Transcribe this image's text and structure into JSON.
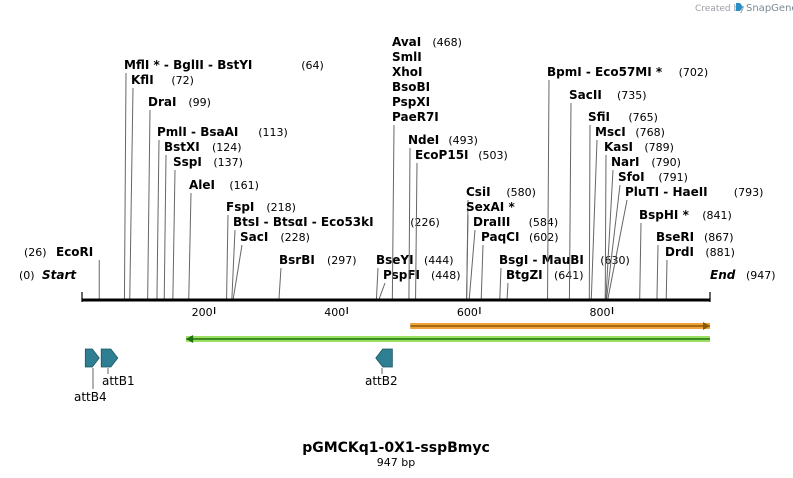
{
  "credit": {
    "prefix": "Created by",
    "brand": "SnapGene",
    "brand_color": "#2b8fc7"
  },
  "map": {
    "length": 947,
    "start_label": "Start",
    "end_label": "End",
    "start_pos": "(0)",
    "end_pos": "(947)",
    "ticks": [
      200,
      400,
      600,
      800
    ]
  },
  "sites": [
    {
      "id": "ecori",
      "label": "EcoRI",
      "pos_text": "(26)",
      "pos": 26,
      "pos_left": true
    },
    {
      "id": "mfli",
      "label": "MflI * - BglII - BstYI",
      "pos_text": "(64)",
      "pos": 64
    },
    {
      "id": "kfli",
      "label": "KflI",
      "pos_text": "(72)",
      "pos": 72
    },
    {
      "id": "drai",
      "label": "DraI",
      "pos_text": "(99)",
      "pos": 99
    },
    {
      "id": "pmli",
      "label": "PmlI - BsaAI",
      "pos_text": "(113)",
      "pos": 113
    },
    {
      "id": "bstxi",
      "label": "BstXI",
      "pos_text": "(124)",
      "pos": 124
    },
    {
      "id": "sspi",
      "label": "SspI",
      "pos_text": "(137)",
      "pos": 137
    },
    {
      "id": "alei",
      "label": "AleI",
      "pos_text": "(161)",
      "pos": 161
    },
    {
      "id": "fspi",
      "label": "FspI",
      "pos_text": "(218)",
      "pos": 218
    },
    {
      "id": "btsi",
      "label": "BtsI - BtsαI - Eco53kI",
      "pos_text": "(226)",
      "pos": 226
    },
    {
      "id": "saci",
      "label": "SacI",
      "pos_text": "(228)",
      "pos": 228
    },
    {
      "id": "bsrbi",
      "label": "BsrBI",
      "pos_text": "(297)",
      "pos": 297
    },
    {
      "id": "bseyi",
      "label": "BseYI",
      "pos_text": "(444)",
      "pos": 444
    },
    {
      "id": "pspfi",
      "label": "PspFI",
      "pos_text": "(448)",
      "pos": 448
    },
    {
      "id": "avai",
      "label": "AvaI\nSmlI\nXhoI\nBsoBI\nPspXI\nPaeR7I",
      "pos_text": "(468)",
      "pos": 468
    },
    {
      "id": "ndei",
      "label": "NdeI",
      "pos_text": "(493)",
      "pos": 493
    },
    {
      "id": "ecop15i",
      "label": "EcoP15I",
      "pos_text": "(503)",
      "pos": 503
    },
    {
      "id": "csii",
      "label": "CsiI",
      "pos_text": "(580)",
      "pos": 580
    },
    {
      "id": "sexai",
      "label": "SexAI *",
      "pos_text": "",
      "pos": 580
    },
    {
      "id": "draiii",
      "label": "DraIII",
      "pos_text": "(584)",
      "pos": 584
    },
    {
      "id": "paqci",
      "label": "PaqCI",
      "pos_text": "(602)",
      "pos": 602
    },
    {
      "id": "bsgi",
      "label": "BsgI - MauBI",
      "pos_text": "(630)",
      "pos": 630
    },
    {
      "id": "btgzi",
      "label": "BtgZI",
      "pos_text": "(641)",
      "pos": 641
    },
    {
      "id": "bpmi",
      "label": "BpmI - Eco57MI *",
      "pos_text": "(702)",
      "pos": 702
    },
    {
      "id": "sacii",
      "label": "SacII",
      "pos_text": "(735)",
      "pos": 735
    },
    {
      "id": "sfii",
      "label": "SfiI",
      "pos_text": "(765)",
      "pos": 765
    },
    {
      "id": "msci",
      "label": "MscI",
      "pos_text": "(768)",
      "pos": 768
    },
    {
      "id": "kasi",
      "label": "KasI",
      "pos_text": "(789)",
      "pos": 789
    },
    {
      "id": "nari",
      "label": "NarI",
      "pos_text": "(790)",
      "pos": 790
    },
    {
      "id": "sfoi",
      "label": "SfoI",
      "pos_text": "(791)",
      "pos": 791
    },
    {
      "id": "pluti",
      "label": "PluTI - HaeII",
      "pos_text": "(793)",
      "pos": 793
    },
    {
      "id": "bsphi",
      "label": "BspHI *",
      "pos_text": "(841)",
      "pos": 841
    },
    {
      "id": "bseri",
      "label": "BseRI",
      "pos_text": "(867)",
      "pos": 867
    },
    {
      "id": "drdi",
      "label": "DrdI",
      "pos_text": "(881)",
      "pos": 881
    }
  ],
  "features": [
    {
      "id": "attb4",
      "label": "attB4",
      "start": 5,
      "end": 26,
      "dir": "forward",
      "color": "#2e7f91"
    },
    {
      "id": "attb1",
      "label": "attB1",
      "start": 29,
      "end": 54,
      "dir": "forward",
      "color": "#2e7f91"
    },
    {
      "id": "attb2",
      "label": "attB2",
      "start": 443,
      "end": 468,
      "dir": "reverse",
      "color": "#2e7f91"
    }
  ],
  "ranges": [
    {
      "id": "orange-range",
      "start": 495,
      "end": 947,
      "dir": "forward",
      "color": "#f0a23a",
      "border": "#8a5a00"
    },
    {
      "id": "green-range",
      "start": 157,
      "end": 947,
      "dir": "reverse",
      "color": "#9be060",
      "border": "#1f6f10"
    }
  ],
  "plasmid": {
    "name": "pGMCKq1-0X1-sspBmyc",
    "size": "947 bp"
  }
}
